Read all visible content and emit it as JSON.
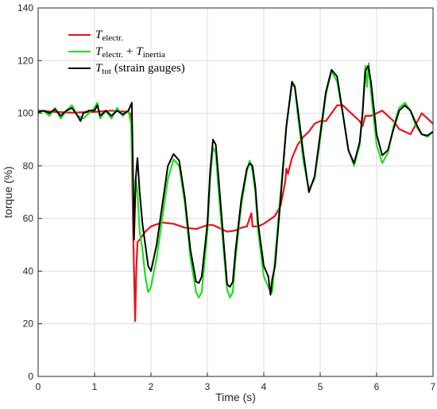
{
  "chart_data": {
    "type": "line",
    "title": "",
    "xlabel": "Time (s)",
    "ylabel": "torque (%)",
    "xlim": [
      0,
      7
    ],
    "ylim": [
      0,
      140
    ],
    "xticks": [
      "0",
      "1",
      "2",
      "3",
      "4",
      "5",
      "6",
      "7"
    ],
    "yticks": [
      "0",
      "20",
      "40",
      "60",
      "80",
      "100",
      "120",
      "140"
    ],
    "grid": true,
    "legend_position": "top-left",
    "series": [
      {
        "name": "T_electr.",
        "legend_main": "T",
        "legend_sub": "electr.",
        "color": "#e8131b",
        "points": [
          [
            0.0,
            101
          ],
          [
            0.3,
            100.5
          ],
          [
            0.6,
            100.2
          ],
          [
            1.0,
            100.5
          ],
          [
            1.3,
            101
          ],
          [
            1.6,
            100.5
          ],
          [
            1.65,
            99.5
          ],
          [
            1.68,
            60
          ],
          [
            1.7,
            40
          ],
          [
            1.72,
            21
          ],
          [
            1.74,
            40
          ],
          [
            1.76,
            51
          ],
          [
            1.8,
            52
          ],
          [
            1.9,
            55
          ],
          [
            2.0,
            57
          ],
          [
            2.2,
            58.5
          ],
          [
            2.4,
            58
          ],
          [
            2.6,
            56.5
          ],
          [
            2.8,
            56
          ],
          [
            3.0,
            57.5
          ],
          [
            3.1,
            57.5
          ],
          [
            3.2,
            56.5
          ],
          [
            3.35,
            55
          ],
          [
            3.5,
            55.5
          ],
          [
            3.6,
            56.5
          ],
          [
            3.7,
            57
          ],
          [
            3.78,
            62
          ],
          [
            3.8,
            57
          ],
          [
            3.9,
            57
          ],
          [
            4.0,
            58
          ],
          [
            4.1,
            59.5
          ],
          [
            4.2,
            61
          ],
          [
            4.3,
            65
          ],
          [
            4.38,
            74
          ],
          [
            4.4,
            79
          ],
          [
            4.43,
            77
          ],
          [
            4.5,
            83
          ],
          [
            4.6,
            88
          ],
          [
            4.7,
            91
          ],
          [
            4.8,
            93
          ],
          [
            4.9,
            96
          ],
          [
            5.0,
            97
          ],
          [
            5.1,
            97
          ],
          [
            5.2,
            100
          ],
          [
            5.3,
            103
          ],
          [
            5.4,
            103
          ],
          [
            5.5,
            101
          ],
          [
            5.6,
            99
          ],
          [
            5.7,
            97
          ],
          [
            5.75,
            95
          ],
          [
            5.8,
            99
          ],
          [
            5.9,
            99
          ],
          [
            6.0,
            100
          ],
          [
            6.1,
            101
          ],
          [
            6.2,
            99
          ],
          [
            6.3,
            97
          ],
          [
            6.4,
            94
          ],
          [
            6.5,
            93
          ],
          [
            6.6,
            92
          ],
          [
            6.8,
            100
          ],
          [
            6.9,
            98
          ],
          [
            7.0,
            96
          ]
        ]
      },
      {
        "name": "T_electr. + T_inertia",
        "legend_main": "T",
        "legend_sub": "electr.",
        "legend_plus": "+",
        "legend_main2": "T",
        "legend_sub2": "inertia",
        "color": "#20e020",
        "points": [
          [
            0.0,
            100
          ],
          [
            0.1,
            101
          ],
          [
            0.2,
            99
          ],
          [
            0.3,
            102
          ],
          [
            0.4,
            98
          ],
          [
            0.5,
            101
          ],
          [
            0.6,
            103
          ],
          [
            0.7,
            99
          ],
          [
            0.8,
            98
          ],
          [
            0.9,
            100
          ],
          [
            1.0,
            102
          ],
          [
            1.05,
            104
          ],
          [
            1.1,
            98
          ],
          [
            1.2,
            101
          ],
          [
            1.3,
            98
          ],
          [
            1.4,
            102
          ],
          [
            1.5,
            99
          ],
          [
            1.6,
            101
          ],
          [
            1.65,
            96
          ],
          [
            1.68,
            70
          ],
          [
            1.7,
            55
          ],
          [
            1.73,
            75
          ],
          [
            1.76,
            70
          ],
          [
            1.8,
            55
          ],
          [
            1.85,
            48
          ],
          [
            1.9,
            38
          ],
          [
            1.95,
            32
          ],
          [
            2.0,
            34
          ],
          [
            2.1,
            45
          ],
          [
            2.2,
            60
          ],
          [
            2.3,
            75
          ],
          [
            2.4,
            82.5
          ],
          [
            2.5,
            80
          ],
          [
            2.6,
            66
          ],
          [
            2.7,
            45
          ],
          [
            2.8,
            32
          ],
          [
            2.85,
            30
          ],
          [
            2.9,
            32
          ],
          [
            3.0,
            55
          ],
          [
            3.05,
            75
          ],
          [
            3.1,
            87
          ],
          [
            3.15,
            85
          ],
          [
            3.2,
            70
          ],
          [
            3.3,
            45
          ],
          [
            3.35,
            33
          ],
          [
            3.4,
            30
          ],
          [
            3.45,
            32
          ],
          [
            3.5,
            45
          ],
          [
            3.6,
            65
          ],
          [
            3.7,
            78
          ],
          [
            3.75,
            82
          ],
          [
            3.8,
            78
          ],
          [
            3.85,
            70
          ],
          [
            3.9,
            55
          ],
          [
            4.0,
            38
          ],
          [
            4.1,
            33
          ],
          [
            4.15,
            32
          ],
          [
            4.2,
            45
          ],
          [
            4.3,
            70
          ],
          [
            4.4,
            95
          ],
          [
            4.5,
            111
          ],
          [
            4.55,
            110
          ],
          [
            4.6,
            100
          ],
          [
            4.7,
            82
          ],
          [
            4.8,
            71
          ],
          [
            4.9,
            75
          ],
          [
            5.0,
            90
          ],
          [
            5.1,
            107
          ],
          [
            5.2,
            116
          ],
          [
            5.3,
            112
          ],
          [
            5.4,
            100
          ],
          [
            5.5,
            86
          ],
          [
            5.6,
            80
          ],
          [
            5.7,
            88
          ],
          [
            5.75,
            100
          ],
          [
            5.8,
            118
          ],
          [
            5.83,
            110
          ],
          [
            5.86,
            119
          ],
          [
            5.9,
            108
          ],
          [
            6.0,
            88
          ],
          [
            6.1,
            81
          ],
          [
            6.2,
            85
          ],
          [
            6.3,
            95
          ],
          [
            6.4,
            102
          ],
          [
            6.5,
            104
          ],
          [
            6.6,
            101
          ],
          [
            6.7,
            95
          ],
          [
            6.8,
            92
          ],
          [
            6.9,
            91
          ],
          [
            7.0,
            93
          ]
        ]
      },
      {
        "name": "T_tot (strain gauges)",
        "legend_main": "T",
        "legend_sub": "tot",
        "legend_rest": "(strain gauges)",
        "color": "#000000",
        "points": [
          [
            0.0,
            100.5
          ],
          [
            0.1,
            101
          ],
          [
            0.2,
            100
          ],
          [
            0.3,
            101.5
          ],
          [
            0.4,
            99
          ],
          [
            0.5,
            101
          ],
          [
            0.6,
            102
          ],
          [
            0.7,
            99
          ],
          [
            0.75,
            97
          ],
          [
            0.8,
            100
          ],
          [
            0.9,
            101
          ],
          [
            1.0,
            101
          ],
          [
            1.05,
            103
          ],
          [
            1.1,
            99
          ],
          [
            1.2,
            101
          ],
          [
            1.3,
            99
          ],
          [
            1.4,
            101
          ],
          [
            1.5,
            99.5
          ],
          [
            1.6,
            101
          ],
          [
            1.66,
            104
          ],
          [
            1.68,
            80
          ],
          [
            1.7,
            52
          ],
          [
            1.73,
            75
          ],
          [
            1.76,
            83
          ],
          [
            1.8,
            70
          ],
          [
            1.85,
            58
          ],
          [
            1.9,
            50
          ],
          [
            1.95,
            42
          ],
          [
            2.0,
            40
          ],
          [
            2.1,
            50
          ],
          [
            2.2,
            65
          ],
          [
            2.3,
            80
          ],
          [
            2.4,
            84.5
          ],
          [
            2.5,
            82
          ],
          [
            2.6,
            68
          ],
          [
            2.7,
            48
          ],
          [
            2.8,
            36
          ],
          [
            2.85,
            35.5
          ],
          [
            2.9,
            38
          ],
          [
            3.0,
            58
          ],
          [
            3.05,
            78
          ],
          [
            3.1,
            90
          ],
          [
            3.15,
            88
          ],
          [
            3.2,
            75
          ],
          [
            3.3,
            48
          ],
          [
            3.35,
            35
          ],
          [
            3.4,
            34
          ],
          [
            3.45,
            36
          ],
          [
            3.5,
            48
          ],
          [
            3.6,
            67
          ],
          [
            3.7,
            79
          ],
          [
            3.75,
            81
          ],
          [
            3.8,
            80
          ],
          [
            3.85,
            72
          ],
          [
            3.9,
            58
          ],
          [
            4.0,
            42
          ],
          [
            4.08,
            38
          ],
          [
            4.12,
            31
          ],
          [
            4.15,
            37
          ],
          [
            4.2,
            42
          ],
          [
            4.3,
            68
          ],
          [
            4.4,
            95
          ],
          [
            4.5,
            112
          ],
          [
            4.55,
            110
          ],
          [
            4.6,
            102
          ],
          [
            4.7,
            85
          ],
          [
            4.8,
            70
          ],
          [
            4.9,
            76
          ],
          [
            5.0,
            92
          ],
          [
            5.1,
            108
          ],
          [
            5.2,
            116.5
          ],
          [
            5.3,
            114
          ],
          [
            5.4,
            100
          ],
          [
            5.5,
            86
          ],
          [
            5.6,
            81
          ],
          [
            5.7,
            89
          ],
          [
            5.75,
            100
          ],
          [
            5.8,
            116
          ],
          [
            5.85,
            118
          ],
          [
            5.9,
            112
          ],
          [
            6.0,
            92
          ],
          [
            6.1,
            84
          ],
          [
            6.2,
            86
          ],
          [
            6.3,
            94
          ],
          [
            6.4,
            101
          ],
          [
            6.5,
            103
          ],
          [
            6.6,
            101
          ],
          [
            6.7,
            96
          ],
          [
            6.8,
            92
          ],
          [
            6.9,
            91.5
          ],
          [
            7.0,
            93
          ]
        ]
      }
    ]
  }
}
